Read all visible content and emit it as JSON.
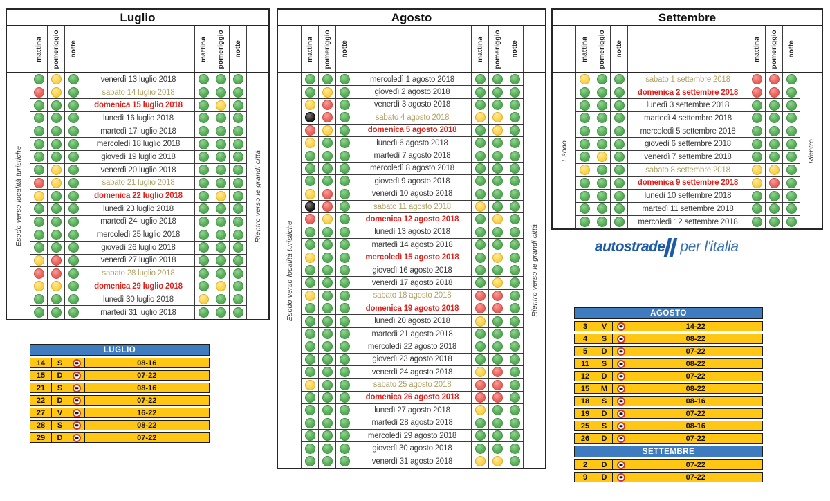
{
  "period_headers": [
    "mattina",
    "pomeriggio",
    "notte"
  ],
  "colors": {
    "traffic_green": "#58b058",
    "traffic_yellow": "#fcd44e",
    "traffic_red": "#ec6660",
    "traffic_black": "#222222",
    "saturday_text": "#b2a266",
    "holiday_text": "#e0201a",
    "ban_table_header_blue": "#3e7cbf",
    "ban_table_row_yellow": "#ffc713",
    "logo_blue": "#1d5aa7"
  },
  "logo": {
    "brand": "autostrade",
    "suffix": "per l'italia"
  },
  "months": [
    {
      "title": "Luglio",
      "left_label": "Esodo verso località turistiche",
      "right_label": "Rientro verso le grandi città",
      "days": [
        {
          "date": "venerdì 13 luglio 2018",
          "type": "w",
          "esodo": [
            "g",
            "y",
            "g"
          ],
          "rientro": [
            "g",
            "g",
            "g"
          ]
        },
        {
          "date": "sabato 14 luglio 2018",
          "type": "s",
          "esodo": [
            "r",
            "y",
            "g"
          ],
          "rientro": [
            "g",
            "g",
            "g"
          ]
        },
        {
          "date": "domenica 15 luglio 2018",
          "type": "h",
          "esodo": [
            "g",
            "g",
            "g"
          ],
          "rientro": [
            "g",
            "y",
            "g"
          ]
        },
        {
          "date": "lunedì 16 luglio 2018",
          "type": "w",
          "esodo": [
            "g",
            "g",
            "g"
          ],
          "rientro": [
            "g",
            "g",
            "g"
          ]
        },
        {
          "date": "martedì 17 luglio 2018",
          "type": "w",
          "esodo": [
            "g",
            "g",
            "g"
          ],
          "rientro": [
            "g",
            "g",
            "g"
          ]
        },
        {
          "date": "mercoledì 18 luglio 2018",
          "type": "w",
          "esodo": [
            "g",
            "g",
            "g"
          ],
          "rientro": [
            "g",
            "g",
            "g"
          ]
        },
        {
          "date": "giovedì 19 luglio 2018",
          "type": "w",
          "esodo": [
            "g",
            "g",
            "g"
          ],
          "rientro": [
            "g",
            "g",
            "g"
          ]
        },
        {
          "date": "venerdì 20 luglio 2018",
          "type": "w",
          "esodo": [
            "g",
            "y",
            "g"
          ],
          "rientro": [
            "g",
            "g",
            "g"
          ]
        },
        {
          "date": "sabato 21 luglio 2018",
          "type": "s",
          "esodo": [
            "r",
            "y",
            "g"
          ],
          "rientro": [
            "g",
            "g",
            "g"
          ]
        },
        {
          "date": "domenica 22 luglio 2018",
          "type": "h",
          "esodo": [
            "y",
            "g",
            "g"
          ],
          "rientro": [
            "g",
            "y",
            "g"
          ]
        },
        {
          "date": "lunedì 23 luglio 2018",
          "type": "w",
          "esodo": [
            "g",
            "g",
            "g"
          ],
          "rientro": [
            "g",
            "g",
            "g"
          ]
        },
        {
          "date": "martedì 24 luglio 2018",
          "type": "w",
          "esodo": [
            "g",
            "g",
            "g"
          ],
          "rientro": [
            "g",
            "g",
            "g"
          ]
        },
        {
          "date": "mercoledì 25 luglio 2018",
          "type": "w",
          "esodo": [
            "g",
            "g",
            "g"
          ],
          "rientro": [
            "g",
            "g",
            "g"
          ]
        },
        {
          "date": "giovedì 26 luglio 2018",
          "type": "w",
          "esodo": [
            "g",
            "g",
            "g"
          ],
          "rientro": [
            "g",
            "g",
            "g"
          ]
        },
        {
          "date": "venerdì 27 luglio 2018",
          "type": "w",
          "esodo": [
            "y",
            "r",
            "g"
          ],
          "rientro": [
            "g",
            "g",
            "g"
          ]
        },
        {
          "date": "sabato 28 luglio 2018",
          "type": "s",
          "esodo": [
            "r",
            "r",
            "g"
          ],
          "rientro": [
            "g",
            "g",
            "g"
          ]
        },
        {
          "date": "domenica 29 luglio 2018",
          "type": "h",
          "esodo": [
            "y",
            "y",
            "g"
          ],
          "rientro": [
            "g",
            "y",
            "g"
          ]
        },
        {
          "date": "lunedì 30 luglio 2018",
          "type": "w",
          "esodo": [
            "g",
            "g",
            "g"
          ],
          "rientro": [
            "y",
            "g",
            "g"
          ]
        },
        {
          "date": "martedì 31 luglio 2018",
          "type": "w",
          "esodo": [
            "g",
            "g",
            "g"
          ],
          "rientro": [
            "g",
            "g",
            "g"
          ]
        }
      ]
    },
    {
      "title": "Agosto",
      "left_label": "Esodo verso località turistiche",
      "right_label": "Rientro verso le grandi città",
      "days": [
        {
          "date": "mercoledì 1 agosto 2018",
          "type": "w",
          "esodo": [
            "g",
            "g",
            "g"
          ],
          "rientro": [
            "g",
            "g",
            "g"
          ]
        },
        {
          "date": "giovedì 2 agosto 2018",
          "type": "w",
          "esodo": [
            "g",
            "y",
            "g"
          ],
          "rientro": [
            "g",
            "g",
            "g"
          ]
        },
        {
          "date": "venerdì 3 agosto 2018",
          "type": "w",
          "esodo": [
            "y",
            "r",
            "g"
          ],
          "rientro": [
            "g",
            "g",
            "g"
          ]
        },
        {
          "date": "sabato 4 agosto 2018",
          "type": "s",
          "esodo": [
            "k",
            "r",
            "g"
          ],
          "rientro": [
            "y",
            "y",
            "g"
          ]
        },
        {
          "date": "domenica 5 agosto 2018",
          "type": "h",
          "esodo": [
            "r",
            "y",
            "g"
          ],
          "rientro": [
            "g",
            "y",
            "g"
          ]
        },
        {
          "date": "lunedì 6 agosto 2018",
          "type": "w",
          "esodo": [
            "y",
            "g",
            "g"
          ],
          "rientro": [
            "g",
            "g",
            "g"
          ]
        },
        {
          "date": "martedì 7 agosto 2018",
          "type": "w",
          "esodo": [
            "g",
            "g",
            "g"
          ],
          "rientro": [
            "g",
            "g",
            "g"
          ]
        },
        {
          "date": "mercoledì 8 agosto 2018",
          "type": "w",
          "esodo": [
            "g",
            "g",
            "g"
          ],
          "rientro": [
            "g",
            "g",
            "g"
          ]
        },
        {
          "date": "giovedì 9 agosto 2018",
          "type": "w",
          "esodo": [
            "g",
            "g",
            "g"
          ],
          "rientro": [
            "g",
            "g",
            "g"
          ]
        },
        {
          "date": "venerdì 10 agosto 2018",
          "type": "w",
          "esodo": [
            "y",
            "r",
            "g"
          ],
          "rientro": [
            "g",
            "g",
            "g"
          ]
        },
        {
          "date": "sabato 11 agosto 2018",
          "type": "s",
          "esodo": [
            "k",
            "r",
            "g"
          ],
          "rientro": [
            "y",
            "g",
            "g"
          ]
        },
        {
          "date": "domenica 12 agosto 2018",
          "type": "h",
          "esodo": [
            "r",
            "y",
            "g"
          ],
          "rientro": [
            "g",
            "y",
            "g"
          ]
        },
        {
          "date": "lunedì 13 agosto 2018",
          "type": "w",
          "esodo": [
            "g",
            "g",
            "g"
          ],
          "rientro": [
            "g",
            "g",
            "g"
          ]
        },
        {
          "date": "martedì 14 agosto 2018",
          "type": "w",
          "esodo": [
            "g",
            "g",
            "g"
          ],
          "rientro": [
            "g",
            "g",
            "g"
          ]
        },
        {
          "date": "mercoledì 15 agosto 2018",
          "type": "h",
          "esodo": [
            "y",
            "g",
            "g"
          ],
          "rientro": [
            "g",
            "y",
            "g"
          ]
        },
        {
          "date": "giovedì 16 agosto 2018",
          "type": "w",
          "esodo": [
            "g",
            "g",
            "g"
          ],
          "rientro": [
            "g",
            "g",
            "g"
          ]
        },
        {
          "date": "venerdì 17 agosto 2018",
          "type": "w",
          "esodo": [
            "g",
            "g",
            "g"
          ],
          "rientro": [
            "g",
            "y",
            "g"
          ]
        },
        {
          "date": "sabato 18 agosto 2018",
          "type": "s",
          "esodo": [
            "y",
            "g",
            "g"
          ],
          "rientro": [
            "r",
            "r",
            "g"
          ]
        },
        {
          "date": "domenica 19 agosto 2018",
          "type": "h",
          "esodo": [
            "g",
            "g",
            "g"
          ],
          "rientro": [
            "r",
            "r",
            "g"
          ]
        },
        {
          "date": "lunedì 20 agosto 2018",
          "type": "w",
          "esodo": [
            "g",
            "g",
            "g"
          ],
          "rientro": [
            "y",
            "g",
            "g"
          ]
        },
        {
          "date": "martedì 21 agosto 2018",
          "type": "w",
          "esodo": [
            "g",
            "g",
            "g"
          ],
          "rientro": [
            "g",
            "g",
            "g"
          ]
        },
        {
          "date": "mercoledì 22 agosto 2018",
          "type": "w",
          "esodo": [
            "g",
            "g",
            "g"
          ],
          "rientro": [
            "g",
            "g",
            "g"
          ]
        },
        {
          "date": "giovedì 23 agosto 2018",
          "type": "w",
          "esodo": [
            "g",
            "g",
            "g"
          ],
          "rientro": [
            "g",
            "g",
            "g"
          ]
        },
        {
          "date": "venerdì 24 agosto 2018",
          "type": "w",
          "esodo": [
            "g",
            "g",
            "g"
          ],
          "rientro": [
            "y",
            "r",
            "g"
          ]
        },
        {
          "date": "sabato 25 agosto 2018",
          "type": "s",
          "esodo": [
            "y",
            "g",
            "g"
          ],
          "rientro": [
            "r",
            "r",
            "g"
          ]
        },
        {
          "date": "domenica 26 agosto 2018",
          "type": "h",
          "esodo": [
            "g",
            "g",
            "g"
          ],
          "rientro": [
            "r",
            "r",
            "g"
          ]
        },
        {
          "date": "lunedì 27 agosto 2018",
          "type": "w",
          "esodo": [
            "g",
            "g",
            "g"
          ],
          "rientro": [
            "y",
            "g",
            "g"
          ]
        },
        {
          "date": "martedì 28 agosto 2018",
          "type": "w",
          "esodo": [
            "g",
            "g",
            "g"
          ],
          "rientro": [
            "g",
            "g",
            "g"
          ]
        },
        {
          "date": "mercoledì 29 agosto 2018",
          "type": "w",
          "esodo": [
            "g",
            "g",
            "g"
          ],
          "rientro": [
            "g",
            "g",
            "g"
          ]
        },
        {
          "date": "giovedì 30 agosto 2018",
          "type": "w",
          "esodo": [
            "g",
            "g",
            "g"
          ],
          "rientro": [
            "g",
            "g",
            "g"
          ]
        },
        {
          "date": "venerdì 31 agosto 2018",
          "type": "w",
          "esodo": [
            "g",
            "g",
            "g"
          ],
          "rientro": [
            "y",
            "y",
            "g"
          ]
        }
      ]
    },
    {
      "title": "Settembre",
      "left_label": "Esodo",
      "right_label": "Rientro",
      "days": [
        {
          "date": "sabato 1 settembre 2018",
          "type": "s",
          "esodo": [
            "y",
            "g",
            "g"
          ],
          "rientro": [
            "r",
            "r",
            "g"
          ]
        },
        {
          "date": "domenica 2 settembre 2018",
          "type": "h",
          "esodo": [
            "g",
            "g",
            "g"
          ],
          "rientro": [
            "r",
            "r",
            "g"
          ]
        },
        {
          "date": "lunedì 3 settembre 2018",
          "type": "w",
          "esodo": [
            "g",
            "g",
            "g"
          ],
          "rientro": [
            "g",
            "g",
            "g"
          ]
        },
        {
          "date": "martedì 4 settembre 2018",
          "type": "w",
          "esodo": [
            "g",
            "g",
            "g"
          ],
          "rientro": [
            "g",
            "g",
            "g"
          ]
        },
        {
          "date": "mercoledì 5 settembre 2018",
          "type": "w",
          "esodo": [
            "g",
            "g",
            "g"
          ],
          "rientro": [
            "g",
            "g",
            "g"
          ]
        },
        {
          "date": "giovedì 6 settembre 2018",
          "type": "w",
          "esodo": [
            "g",
            "g",
            "g"
          ],
          "rientro": [
            "g",
            "g",
            "g"
          ]
        },
        {
          "date": "venerdì 7 settembre 2018",
          "type": "w",
          "esodo": [
            "g",
            "y",
            "g"
          ],
          "rientro": [
            "g",
            "g",
            "g"
          ]
        },
        {
          "date": "sabato 8 settembre 2018",
          "type": "s",
          "esodo": [
            "y",
            "g",
            "g"
          ],
          "rientro": [
            "y",
            "y",
            "g"
          ]
        },
        {
          "date": "domenica 9 settembre 2018",
          "type": "h",
          "esodo": [
            "g",
            "g",
            "g"
          ],
          "rientro": [
            "y",
            "r",
            "g"
          ]
        },
        {
          "date": "lunedì 10 settembre 2018",
          "type": "w",
          "esodo": [
            "g",
            "g",
            "g"
          ],
          "rientro": [
            "g",
            "g",
            "g"
          ]
        },
        {
          "date": "martedì 11 settembre 2018",
          "type": "w",
          "esodo": [
            "g",
            "g",
            "g"
          ],
          "rientro": [
            "g",
            "g",
            "g"
          ]
        },
        {
          "date": "mercoledì 12 settembre 2018",
          "type": "w",
          "esodo": [
            "g",
            "g",
            "g"
          ],
          "rientro": [
            "g",
            "g",
            "g"
          ]
        }
      ]
    }
  ],
  "ban_tables": [
    {
      "position": "left",
      "sections": [
        {
          "title": "LUGLIO",
          "rows": [
            {
              "day": "14",
              "letter": "S",
              "hours": "08-16"
            },
            {
              "day": "15",
              "letter": "D",
              "hours": "07-22"
            },
            {
              "day": "21",
              "letter": "S",
              "hours": "08-16"
            },
            {
              "day": "22",
              "letter": "D",
              "hours": "07-22"
            },
            {
              "day": "27",
              "letter": "V",
              "hours": "16-22"
            },
            {
              "day": "28",
              "letter": "S",
              "hours": "08-22"
            },
            {
              "day": "29",
              "letter": "D",
              "hours": "07-22"
            }
          ]
        }
      ]
    },
    {
      "position": "right",
      "sections": [
        {
          "title": "AGOSTO",
          "rows": [
            {
              "day": "3",
              "letter": "V",
              "hours": "14-22"
            },
            {
              "day": "4",
              "letter": "S",
              "hours": "08-22"
            },
            {
              "day": "5",
              "letter": "D",
              "hours": "07-22"
            },
            {
              "day": "11",
              "letter": "S",
              "hours": "08-22"
            },
            {
              "day": "12",
              "letter": "D",
              "hours": "07-22"
            },
            {
              "day": "15",
              "letter": "M",
              "hours": "08-22"
            },
            {
              "day": "18",
              "letter": "S",
              "hours": "08-16"
            },
            {
              "day": "19",
              "letter": "D",
              "hours": "07-22"
            },
            {
              "day": "25",
              "letter": "S",
              "hours": "08-16"
            },
            {
              "day": "26",
              "letter": "D",
              "hours": "07-22"
            }
          ]
        },
        {
          "title": "SETTEMBRE",
          "rows": [
            {
              "day": "2",
              "letter": "D",
              "hours": "07-22"
            },
            {
              "day": "9",
              "letter": "D",
              "hours": "07-22"
            }
          ]
        }
      ]
    }
  ]
}
